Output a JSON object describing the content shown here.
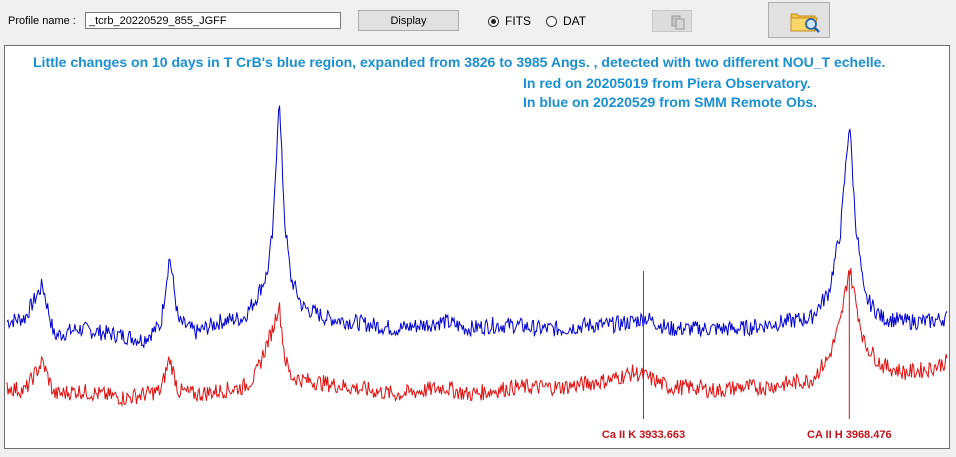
{
  "toolbar": {
    "profile_label": "Profile name :",
    "profile_value": "_tcrb_20220529_855_JGFF",
    "display_label": "Display",
    "format_options": [
      {
        "label": "FITS",
        "selected": true
      },
      {
        "label": "DAT",
        "selected": false
      }
    ],
    "copy_icon": "copy-icon",
    "open_icon": "folder-search-icon"
  },
  "plot": {
    "title": "Little changes on 10 days in T CrB's blue region, expanded from 3826 to 3985 Angs. , detected with two different NOU_T echelle.",
    "line_red": "In  red  on 20205019 from Piera Observatory.",
    "line_blue": "In blue on 20220529 from SMM Remote Obs.",
    "text_color": "#1a8fd0"
  },
  "chart_data": {
    "type": "line",
    "xlim": [
      3826,
      3985
    ],
    "series": [
      {
        "color": "#0000cc",
        "points": [
          [
            3826,
            0.3
          ],
          [
            3829,
            0.31
          ],
          [
            3832,
            0.4
          ],
          [
            3834,
            0.26
          ],
          [
            3838,
            0.28
          ],
          [
            3842,
            0.27
          ],
          [
            3846,
            0.26
          ],
          [
            3849,
            0.25
          ],
          [
            3852,
            0.29
          ],
          [
            3853.5,
            0.48
          ],
          [
            3855,
            0.3
          ],
          [
            3858,
            0.27
          ],
          [
            3862,
            0.3
          ],
          [
            3866,
            0.31
          ],
          [
            3868,
            0.36
          ],
          [
            3870,
            0.43
          ],
          [
            3871,
            0.55
          ],
          [
            3872,
            0.92
          ],
          [
            3873,
            0.57
          ],
          [
            3874,
            0.42
          ],
          [
            3876,
            0.34
          ],
          [
            3880,
            0.31
          ],
          [
            3884,
            0.3
          ],
          [
            3888,
            0.29
          ],
          [
            3892,
            0.28
          ],
          [
            3896,
            0.29
          ],
          [
            3900,
            0.3
          ],
          [
            3904,
            0.28
          ],
          [
            3908,
            0.29
          ],
          [
            3912,
            0.29
          ],
          [
            3916,
            0.28
          ],
          [
            3920,
            0.28
          ],
          [
            3924,
            0.29
          ],
          [
            3928,
            0.29
          ],
          [
            3932,
            0.3
          ],
          [
            3934,
            0.31
          ],
          [
            3938,
            0.28
          ],
          [
            3942,
            0.28
          ],
          [
            3946,
            0.28
          ],
          [
            3950,
            0.28
          ],
          [
            3954,
            0.29
          ],
          [
            3958,
            0.3
          ],
          [
            3962,
            0.31
          ],
          [
            3965,
            0.38
          ],
          [
            3967,
            0.55
          ],
          [
            3968.5,
            0.85
          ],
          [
            3969.5,
            0.58
          ],
          [
            3971,
            0.37
          ],
          [
            3974,
            0.31
          ],
          [
            3978,
            0.3
          ],
          [
            3982,
            0.3
          ],
          [
            3985,
            0.31
          ]
        ]
      },
      {
        "color": "#dd1111",
        "points": [
          [
            3826,
            0.12
          ],
          [
            3829,
            0.11
          ],
          [
            3832,
            0.19
          ],
          [
            3834,
            0.1
          ],
          [
            3838,
            0.11
          ],
          [
            3842,
            0.1
          ],
          [
            3846,
            0.09
          ],
          [
            3849,
            0.1
          ],
          [
            3852,
            0.11
          ],
          [
            3853.5,
            0.2
          ],
          [
            3855,
            0.11
          ],
          [
            3858,
            0.1
          ],
          [
            3862,
            0.11
          ],
          [
            3866,
            0.12
          ],
          [
            3868,
            0.15
          ],
          [
            3870,
            0.24
          ],
          [
            3871,
            0.28
          ],
          [
            3872,
            0.35
          ],
          [
            3873,
            0.2
          ],
          [
            3874,
            0.15
          ],
          [
            3876,
            0.14
          ],
          [
            3880,
            0.13
          ],
          [
            3884,
            0.12
          ],
          [
            3888,
            0.11
          ],
          [
            3892,
            0.1
          ],
          [
            3896,
            0.11
          ],
          [
            3900,
            0.12
          ],
          [
            3904,
            0.1
          ],
          [
            3908,
            0.11
          ],
          [
            3912,
            0.12
          ],
          [
            3916,
            0.12
          ],
          [
            3920,
            0.12
          ],
          [
            3924,
            0.13
          ],
          [
            3928,
            0.14
          ],
          [
            3932,
            0.16
          ],
          [
            3934,
            0.15
          ],
          [
            3938,
            0.12
          ],
          [
            3942,
            0.12
          ],
          [
            3946,
            0.11
          ],
          [
            3950,
            0.12
          ],
          [
            3954,
            0.12
          ],
          [
            3958,
            0.13
          ],
          [
            3962,
            0.14
          ],
          [
            3965,
            0.2
          ],
          [
            3967,
            0.3
          ],
          [
            3968.5,
            0.45
          ],
          [
            3969.5,
            0.36
          ],
          [
            3971,
            0.24
          ],
          [
            3974,
            0.18
          ],
          [
            3978,
            0.16
          ],
          [
            3982,
            0.17
          ],
          [
            3985,
            0.19
          ]
        ]
      }
    ],
    "markers": [
      {
        "x": 3933.663,
        "label": "Ca II K 3933.663"
      },
      {
        "x": 3968.476,
        "label": "CA II H 3968.476"
      }
    ]
  }
}
